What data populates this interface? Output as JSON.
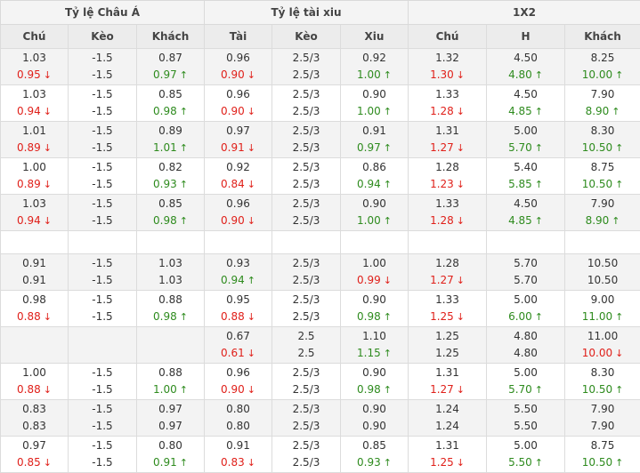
{
  "header": {
    "groups": [
      "Tỷ lệ Châu Á",
      "Tỷ lệ tài xiu",
      "1X2"
    ],
    "columns": [
      "Chú",
      "Kèo",
      "Khách",
      "Tài",
      "Kèo",
      "Xiu",
      "Chú",
      "H",
      "Khách"
    ]
  },
  "colors": {
    "up": "#2e8b1e",
    "down": "#e0201a"
  },
  "icons": {
    "up": "arrow-up-icon",
    "down": "arrow-down-icon"
  },
  "rows": [
    {
      "cells": [
        [
          {
            "v": "1.03"
          },
          {
            "v": "0.95",
            "d": "down"
          }
        ],
        [
          {
            "v": "-1.5"
          },
          {
            "v": "-1.5"
          }
        ],
        [
          {
            "v": "0.87"
          },
          {
            "v": "0.97",
            "d": "up"
          }
        ],
        [
          {
            "v": "0.96"
          },
          {
            "v": "0.90",
            "d": "down"
          }
        ],
        [
          {
            "v": "2.5/3"
          },
          {
            "v": "2.5/3"
          }
        ],
        [
          {
            "v": "0.92"
          },
          {
            "v": "1.00",
            "d": "up"
          }
        ],
        [
          {
            "v": "1.32"
          },
          {
            "v": "1.30",
            "d": "down"
          }
        ],
        [
          {
            "v": "4.50"
          },
          {
            "v": "4.80",
            "d": "up"
          }
        ],
        [
          {
            "v": "8.25"
          },
          {
            "v": "10.00",
            "d": "up"
          }
        ]
      ]
    },
    {
      "cells": [
        [
          {
            "v": "1.03"
          },
          {
            "v": "0.94",
            "d": "down"
          }
        ],
        [
          {
            "v": "-1.5"
          },
          {
            "v": "-1.5"
          }
        ],
        [
          {
            "v": "0.85"
          },
          {
            "v": "0.98",
            "d": "up"
          }
        ],
        [
          {
            "v": "0.96"
          },
          {
            "v": "0.90",
            "d": "down"
          }
        ],
        [
          {
            "v": "2.5/3"
          },
          {
            "v": "2.5/3"
          }
        ],
        [
          {
            "v": "0.90"
          },
          {
            "v": "1.00",
            "d": "up"
          }
        ],
        [
          {
            "v": "1.33"
          },
          {
            "v": "1.28",
            "d": "down"
          }
        ],
        [
          {
            "v": "4.50"
          },
          {
            "v": "4.85",
            "d": "up"
          }
        ],
        [
          {
            "v": "7.90"
          },
          {
            "v": "8.90",
            "d": "up"
          }
        ]
      ]
    },
    {
      "cells": [
        [
          {
            "v": "1.01"
          },
          {
            "v": "0.89",
            "d": "down"
          }
        ],
        [
          {
            "v": "-1.5"
          },
          {
            "v": "-1.5"
          }
        ],
        [
          {
            "v": "0.89"
          },
          {
            "v": "1.01",
            "d": "up"
          }
        ],
        [
          {
            "v": "0.97"
          },
          {
            "v": "0.91",
            "d": "down"
          }
        ],
        [
          {
            "v": "2.5/3"
          },
          {
            "v": "2.5/3"
          }
        ],
        [
          {
            "v": "0.91"
          },
          {
            "v": "0.97",
            "d": "up"
          }
        ],
        [
          {
            "v": "1.31"
          },
          {
            "v": "1.27",
            "d": "down"
          }
        ],
        [
          {
            "v": "5.00"
          },
          {
            "v": "5.70",
            "d": "up"
          }
        ],
        [
          {
            "v": "8.30"
          },
          {
            "v": "10.50",
            "d": "up"
          }
        ]
      ]
    },
    {
      "cells": [
        [
          {
            "v": "1.00"
          },
          {
            "v": "0.89",
            "d": "down"
          }
        ],
        [
          {
            "v": "-1.5"
          },
          {
            "v": "-1.5"
          }
        ],
        [
          {
            "v": "0.82"
          },
          {
            "v": "0.93",
            "d": "up"
          }
        ],
        [
          {
            "v": "0.92"
          },
          {
            "v": "0.84",
            "d": "down"
          }
        ],
        [
          {
            "v": "2.5/3"
          },
          {
            "v": "2.5/3"
          }
        ],
        [
          {
            "v": "0.86"
          },
          {
            "v": "0.94",
            "d": "up"
          }
        ],
        [
          {
            "v": "1.28"
          },
          {
            "v": "1.23",
            "d": "down"
          }
        ],
        [
          {
            "v": "5.40"
          },
          {
            "v": "5.85",
            "d": "up"
          }
        ],
        [
          {
            "v": "8.75"
          },
          {
            "v": "10.50",
            "d": "up"
          }
        ]
      ]
    },
    {
      "cells": [
        [
          {
            "v": "1.03"
          },
          {
            "v": "0.94",
            "d": "down"
          }
        ],
        [
          {
            "v": "-1.5"
          },
          {
            "v": "-1.5"
          }
        ],
        [
          {
            "v": "0.85"
          },
          {
            "v": "0.98",
            "d": "up"
          }
        ],
        [
          {
            "v": "0.96"
          },
          {
            "v": "0.90",
            "d": "down"
          }
        ],
        [
          {
            "v": "2.5/3"
          },
          {
            "v": "2.5/3"
          }
        ],
        [
          {
            "v": "0.90"
          },
          {
            "v": "1.00",
            "d": "up"
          }
        ],
        [
          {
            "v": "1.33"
          },
          {
            "v": "1.28",
            "d": "down"
          }
        ],
        [
          {
            "v": "4.50"
          },
          {
            "v": "4.85",
            "d": "up"
          }
        ],
        [
          {
            "v": "7.90"
          },
          {
            "v": "8.90",
            "d": "up"
          }
        ]
      ]
    },
    {
      "spacer": true
    },
    {
      "cells": [
        [
          {
            "v": "0.91"
          },
          {
            "v": "0.91"
          }
        ],
        [
          {
            "v": "-1.5"
          },
          {
            "v": "-1.5"
          }
        ],
        [
          {
            "v": "1.03"
          },
          {
            "v": "1.03"
          }
        ],
        [
          {
            "v": "0.93"
          },
          {
            "v": "0.94",
            "d": "up"
          }
        ],
        [
          {
            "v": "2.5/3"
          },
          {
            "v": "2.5/3"
          }
        ],
        [
          {
            "v": "1.00"
          },
          {
            "v": "0.99",
            "d": "down"
          }
        ],
        [
          {
            "v": "1.28"
          },
          {
            "v": "1.27",
            "d": "down"
          }
        ],
        [
          {
            "v": "5.70"
          },
          {
            "v": "5.70"
          }
        ],
        [
          {
            "v": "10.50"
          },
          {
            "v": "10.50"
          }
        ]
      ]
    },
    {
      "cells": [
        [
          {
            "v": "0.98"
          },
          {
            "v": "0.88",
            "d": "down"
          }
        ],
        [
          {
            "v": "-1.5"
          },
          {
            "v": "-1.5"
          }
        ],
        [
          {
            "v": "0.88"
          },
          {
            "v": "0.98",
            "d": "up"
          }
        ],
        [
          {
            "v": "0.95"
          },
          {
            "v": "0.88",
            "d": "down"
          }
        ],
        [
          {
            "v": "2.5/3"
          },
          {
            "v": "2.5/3"
          }
        ],
        [
          {
            "v": "0.90"
          },
          {
            "v": "0.98",
            "d": "up"
          }
        ],
        [
          {
            "v": "1.33"
          },
          {
            "v": "1.25",
            "d": "down"
          }
        ],
        [
          {
            "v": "5.00"
          },
          {
            "v": "6.00",
            "d": "up"
          }
        ],
        [
          {
            "v": "9.00"
          },
          {
            "v": "11.00",
            "d": "up"
          }
        ]
      ]
    },
    {
      "cells": [
        [],
        [],
        [],
        [
          {
            "v": "0.67"
          },
          {
            "v": "0.61",
            "d": "down"
          }
        ],
        [
          {
            "v": "2.5"
          },
          {
            "v": "2.5"
          }
        ],
        [
          {
            "v": "1.10"
          },
          {
            "v": "1.15",
            "d": "up"
          }
        ],
        [
          {
            "v": "1.25"
          },
          {
            "v": "1.25"
          }
        ],
        [
          {
            "v": "4.80"
          },
          {
            "v": "4.80"
          }
        ],
        [
          {
            "v": "11.00"
          },
          {
            "v": "10.00",
            "d": "down"
          }
        ]
      ]
    },
    {
      "cells": [
        [
          {
            "v": "1.00"
          },
          {
            "v": "0.88",
            "d": "down"
          }
        ],
        [
          {
            "v": "-1.5"
          },
          {
            "v": "-1.5"
          }
        ],
        [
          {
            "v": "0.88"
          },
          {
            "v": "1.00",
            "d": "up"
          }
        ],
        [
          {
            "v": "0.96"
          },
          {
            "v": "0.90",
            "d": "down"
          }
        ],
        [
          {
            "v": "2.5/3"
          },
          {
            "v": "2.5/3"
          }
        ],
        [
          {
            "v": "0.90"
          },
          {
            "v": "0.98",
            "d": "up"
          }
        ],
        [
          {
            "v": "1.31"
          },
          {
            "v": "1.27",
            "d": "down"
          }
        ],
        [
          {
            "v": "5.00"
          },
          {
            "v": "5.70",
            "d": "up"
          }
        ],
        [
          {
            "v": "8.30"
          },
          {
            "v": "10.50",
            "d": "up"
          }
        ]
      ]
    },
    {
      "cells": [
        [
          {
            "v": "0.83"
          },
          {
            "v": "0.83"
          }
        ],
        [
          {
            "v": "-1.5"
          },
          {
            "v": "-1.5"
          }
        ],
        [
          {
            "v": "0.97"
          },
          {
            "v": "0.97"
          }
        ],
        [
          {
            "v": "0.80"
          },
          {
            "v": "0.80"
          }
        ],
        [
          {
            "v": "2.5/3"
          },
          {
            "v": "2.5/3"
          }
        ],
        [
          {
            "v": "0.90"
          },
          {
            "v": "0.90"
          }
        ],
        [
          {
            "v": "1.24"
          },
          {
            "v": "1.24"
          }
        ],
        [
          {
            "v": "5.50"
          },
          {
            "v": "5.50"
          }
        ],
        [
          {
            "v": "7.90"
          },
          {
            "v": "7.90"
          }
        ]
      ]
    },
    {
      "cells": [
        [
          {
            "v": "0.97"
          },
          {
            "v": "0.85",
            "d": "down"
          }
        ],
        [
          {
            "v": "-1.5"
          },
          {
            "v": "-1.5"
          }
        ],
        [
          {
            "v": "0.80"
          },
          {
            "v": "0.91",
            "d": "up"
          }
        ],
        [
          {
            "v": "0.91"
          },
          {
            "v": "0.83",
            "d": "down"
          }
        ],
        [
          {
            "v": "2.5/3"
          },
          {
            "v": "2.5/3"
          }
        ],
        [
          {
            "v": "0.85"
          },
          {
            "v": "0.93",
            "d": "up"
          }
        ],
        [
          {
            "v": "1.31"
          },
          {
            "v": "1.25",
            "d": "down"
          }
        ],
        [
          {
            "v": "5.00"
          },
          {
            "v": "5.50",
            "d": "up"
          }
        ],
        [
          {
            "v": "8.75"
          },
          {
            "v": "10.50",
            "d": "up"
          }
        ]
      ]
    }
  ]
}
